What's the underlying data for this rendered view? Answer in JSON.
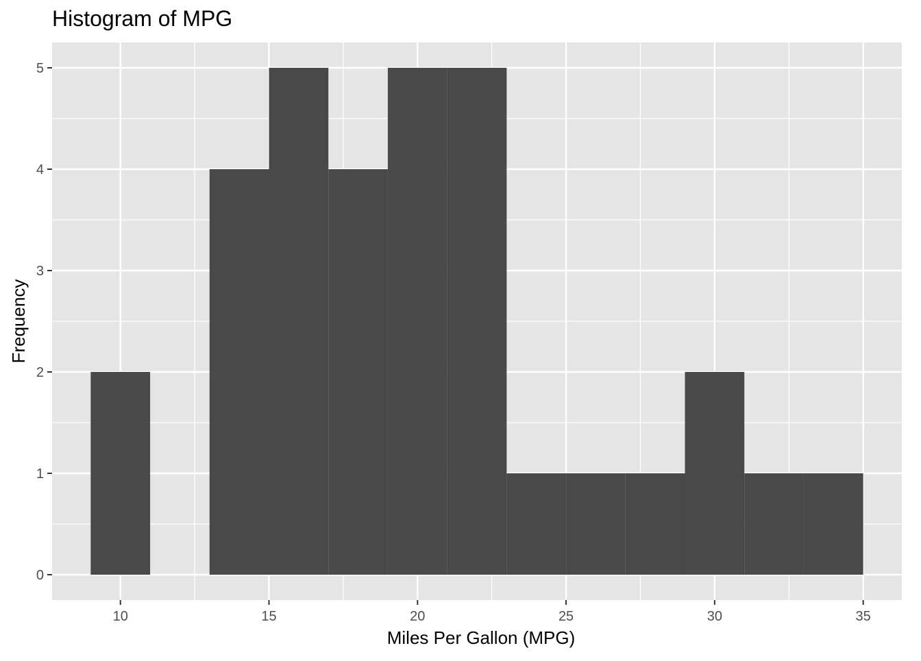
{
  "chart_data": {
    "type": "bar",
    "title": "Histogram of MPG",
    "xlabel": "Miles Per Gallon (MPG)",
    "ylabel": "Frequency",
    "bin_width": 2,
    "bins": [
      {
        "x0": 9,
        "x1": 11,
        "count": 2
      },
      {
        "x0": 11,
        "x1": 13,
        "count": 0
      },
      {
        "x0": 13,
        "x1": 15,
        "count": 4
      },
      {
        "x0": 15,
        "x1": 17,
        "count": 5
      },
      {
        "x0": 17,
        "x1": 19,
        "count": 4
      },
      {
        "x0": 19,
        "x1": 21,
        "count": 5
      },
      {
        "x0": 21,
        "x1": 23,
        "count": 5
      },
      {
        "x0": 23,
        "x1": 25,
        "count": 1
      },
      {
        "x0": 25,
        "x1": 27,
        "count": 1
      },
      {
        "x0": 27,
        "x1": 29,
        "count": 1
      },
      {
        "x0": 29,
        "x1": 31,
        "count": 2
      },
      {
        "x0": 31,
        "x1": 33,
        "count": 1
      },
      {
        "x0": 33,
        "x1": 35,
        "count": 1
      }
    ],
    "xlim": [
      7.7,
      36.3
    ],
    "ylim": [
      -0.25,
      5.25
    ],
    "x_ticks": [
      10,
      15,
      20,
      25,
      30,
      35
    ],
    "y_ticks": [
      0,
      1,
      2,
      3,
      4,
      5
    ],
    "x_tick_labels": [
      "10",
      "15",
      "20",
      "25",
      "30",
      "35"
    ],
    "y_tick_labels": [
      "0",
      "1",
      "2",
      "3",
      "4",
      "5"
    ],
    "grid": true,
    "colors": {
      "panel_background": "#e5e5e5",
      "grid_major": "#ffffff",
      "bar_fill": "#494949"
    }
  }
}
